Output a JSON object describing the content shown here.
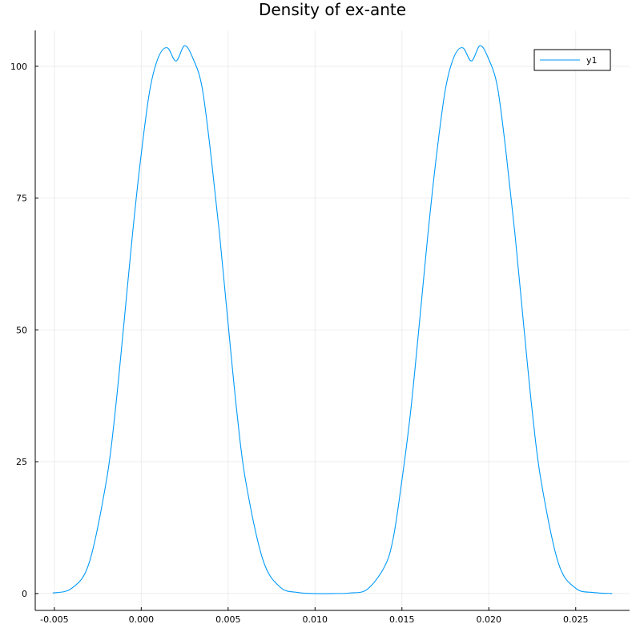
{
  "chart_data": {
    "type": "line",
    "title": "Density of ex-ante",
    "xlabel": "",
    "ylabel": "",
    "xlim": [
      -0.0061,
      0.0281
    ],
    "ylim": [
      -3.2,
      106.8
    ],
    "grid": true,
    "legend_position": "top-right",
    "x_ticks": [
      -0.005,
      0.0,
      0.005,
      0.01,
      0.015,
      0.02,
      0.025
    ],
    "x_tick_labels": [
      "-0.005",
      "0.000",
      "0.005",
      "0.010",
      "0.015",
      "0.020",
      "0.025"
    ],
    "y_ticks": [
      0,
      25,
      50,
      75,
      100
    ],
    "y_tick_labels": [
      "0",
      "25",
      "50",
      "75",
      "100"
    ],
    "series": [
      {
        "name": "y1",
        "color": "#009af9",
        "x": [
          -0.0051,
          -0.004,
          -0.003,
          -0.002,
          -0.0015,
          -0.001,
          -0.0005,
          0.0,
          0.0005,
          0.001,
          0.0015,
          0.002,
          0.0025,
          0.003,
          0.0035,
          0.004,
          0.0045,
          0.005,
          0.0055,
          0.006,
          0.007,
          0.008,
          0.009,
          0.01,
          0.011,
          0.012,
          0.013,
          0.014,
          0.0145,
          0.015,
          0.0155,
          0.016,
          0.0165,
          0.017,
          0.0175,
          0.018,
          0.0185,
          0.019,
          0.0195,
          0.02,
          0.0205,
          0.021,
          0.0215,
          0.022,
          0.0225,
          0.023,
          0.024,
          0.025,
          0.026,
          0.0271
        ],
        "y": [
          0.1,
          1.0,
          5.8,
          21.5,
          34.5,
          51.1,
          68.3,
          83.4,
          95.6,
          101.8,
          103.5,
          101.0,
          103.9,
          101.3,
          96.0,
          83.4,
          68.3,
          51.1,
          34.5,
          21.5,
          6.4,
          1.2,
          0.2,
          0.0,
          0.0,
          0.1,
          0.8,
          5.1,
          10.5,
          21.5,
          34.5,
          51.1,
          68.3,
          83.4,
          95.6,
          101.8,
          103.5,
          101.0,
          103.9,
          101.3,
          96.0,
          83.4,
          68.3,
          51.1,
          34.5,
          21.5,
          5.8,
          1.0,
          0.2,
          0.0
        ]
      }
    ]
  }
}
